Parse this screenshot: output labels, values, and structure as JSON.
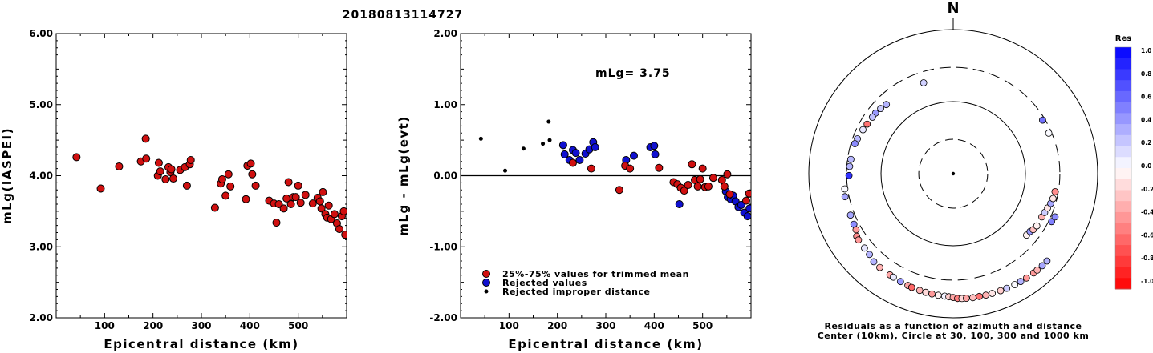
{
  "header": {
    "event_id": "20180813114727"
  },
  "colors": {
    "accepted": "#d01010",
    "rejected": "#1010d0",
    "improper": "#000000"
  },
  "chart_data": [
    {
      "type": "scatter",
      "id": "left",
      "xlabel": "Epicentral distance (km)",
      "ylabel": "mLg(IASPEI)",
      "xlim": [
        0,
        600
      ],
      "ylim": [
        2.0,
        6.0
      ],
      "xticks": [
        100,
        200,
        300,
        400,
        500
      ],
      "yticks": [
        2.0,
        3.0,
        4.0,
        5.0,
        6.0
      ],
      "ytick_labels": [
        "2.00",
        "3.00",
        "4.00",
        "5.00",
        "6.00"
      ],
      "points": [
        [
          42,
          4.26
        ],
        [
          92,
          3.82
        ],
        [
          130,
          4.13
        ],
        [
          175,
          4.2
        ],
        [
          185,
          4.52
        ],
        [
          186,
          4.24
        ],
        [
          210,
          4.0
        ],
        [
          212,
          4.18
        ],
        [
          215,
          4.06
        ],
        [
          226,
          3.95
        ],
        [
          232,
          4.12
        ],
        [
          236,
          4.05
        ],
        [
          238,
          4.09
        ],
        [
          242,
          3.96
        ],
        [
          256,
          4.08
        ],
        [
          266,
          4.12
        ],
        [
          270,
          3.86
        ],
        [
          276,
          4.16
        ],
        [
          278,
          4.22
        ],
        [
          328,
          3.55
        ],
        [
          340,
          3.89
        ],
        [
          343,
          3.95
        ],
        [
          350,
          3.72
        ],
        [
          356,
          4.02
        ],
        [
          360,
          3.85
        ],
        [
          392,
          3.67
        ],
        [
          395,
          4.14
        ],
        [
          402,
          4.17
        ],
        [
          405,
          4.02
        ],
        [
          412,
          3.86
        ],
        [
          440,
          3.65
        ],
        [
          450,
          3.61
        ],
        [
          455,
          3.34
        ],
        [
          460,
          3.6
        ],
        [
          470,
          3.54
        ],
        [
          476,
          3.68
        ],
        [
          480,
          3.91
        ],
        [
          485,
          3.6
        ],
        [
          490,
          3.7
        ],
        [
          495,
          3.7
        ],
        [
          500,
          3.86
        ],
        [
          505,
          3.62
        ],
        [
          515,
          3.73
        ],
        [
          530,
          3.61
        ],
        [
          540,
          3.69
        ],
        [
          545,
          3.64
        ],
        [
          548,
          3.54
        ],
        [
          551,
          3.77
        ],
        [
          556,
          3.46
        ],
        [
          560,
          3.41
        ],
        [
          563,
          3.58
        ],
        [
          568,
          3.39
        ],
        [
          575,
          3.46
        ],
        [
          580,
          3.33
        ],
        [
          585,
          3.25
        ],
        [
          590,
          3.43
        ],
        [
          594,
          3.5
        ],
        [
          597,
          3.17
        ]
      ]
    },
    {
      "type": "scatter",
      "id": "middle",
      "xlabel": "Epicentral distance (km)",
      "ylabel": "mLg - mLg(evt)",
      "annotation": "mLg= 3.75",
      "xlim": [
        0,
        600
      ],
      "ylim": [
        -2.0,
        2.0
      ],
      "xticks": [
        100,
        200,
        300,
        400,
        500
      ],
      "yticks": [
        -2.0,
        -1.0,
        0.0,
        1.0,
        2.0
      ],
      "ytick_labels": [
        "-2.00",
        "-1.00",
        "0.00",
        "1.00",
        "2.00"
      ],
      "legend": [
        {
          "kind": "accepted",
          "label": "25%-75% values for trimmed mean"
        },
        {
          "kind": "rejected",
          "label": "Rejected values"
        },
        {
          "kind": "improper",
          "label": "Rejected improper distance"
        }
      ],
      "improper": [
        [
          42,
          0.52
        ],
        [
          92,
          0.07
        ],
        [
          130,
          0.38
        ],
        [
          170,
          0.45
        ],
        [
          182,
          0.76
        ],
        [
          184,
          0.5
        ]
      ],
      "rejected": [
        [
          212,
          0.43
        ],
        [
          215,
          0.3
        ],
        [
          225,
          0.22
        ],
        [
          232,
          0.36
        ],
        [
          238,
          0.32
        ],
        [
          246,
          0.22
        ],
        [
          258,
          0.31
        ],
        [
          266,
          0.37
        ],
        [
          274,
          0.47
        ],
        [
          278,
          0.4
        ],
        [
          342,
          0.22
        ],
        [
          358,
          0.28
        ],
        [
          392,
          0.4
        ],
        [
          400,
          0.42
        ],
        [
          402,
          0.3
        ],
        [
          452,
          -0.4
        ],
        [
          548,
          -0.22
        ],
        [
          552,
          -0.3
        ],
        [
          558,
          -0.33
        ],
        [
          563,
          -0.28
        ],
        [
          568,
          -0.36
        ],
        [
          574,
          -0.44
        ],
        [
          580,
          -0.41
        ],
        [
          586,
          -0.52
        ],
        [
          593,
          -0.57
        ],
        [
          597,
          -0.46
        ]
      ],
      "accepted": [
        [
          232,
          0.18
        ],
        [
          270,
          0.1
        ],
        [
          328,
          -0.2
        ],
        [
          340,
          0.14
        ],
        [
          350,
          0.1
        ],
        [
          410,
          0.11
        ],
        [
          440,
          -0.09
        ],
        [
          448,
          -0.12
        ],
        [
          455,
          -0.17
        ],
        [
          462,
          -0.21
        ],
        [
          470,
          -0.13
        ],
        [
          478,
          0.16
        ],
        [
          484,
          -0.06
        ],
        [
          490,
          -0.15
        ],
        [
          495,
          -0.05
        ],
        [
          500,
          0.1
        ],
        [
          505,
          -0.16
        ],
        [
          512,
          -0.15
        ],
        [
          522,
          -0.03
        ],
        [
          540,
          -0.06
        ],
        [
          545,
          -0.15
        ],
        [
          551,
          0.02
        ],
        [
          556,
          -0.26
        ],
        [
          590,
          -0.35
        ],
        [
          596,
          -0.25
        ]
      ]
    },
    {
      "type": "polar-scatter",
      "id": "azimuth",
      "north_label": "N",
      "colorbar_title": "Res",
      "colorbar_ticks": [
        "1.0",
        "0.8",
        "0.6",
        "0.4",
        "0.2",
        "0.0",
        "-0.2",
        "-0.4",
        "-0.6",
        "-0.8",
        "-1.0"
      ],
      "caption": [
        "Residuals as a function of azimuth and distance",
        "Center (10km), Circle at 30, 100, 300 and 1000 km"
      ],
      "rings_km": [
        30,
        100,
        300,
        1000
      ],
      "points": [
        [
          342,
          0.18
        ],
        [
          316,
          0.3
        ],
        [
          312,
          0.2
        ],
        [
          308,
          0.4
        ],
        [
          305,
          0.25
        ],
        [
          300,
          -0.55
        ],
        [
          296,
          0.1
        ],
        [
          290,
          0.28
        ],
        [
          287,
          0.45
        ],
        [
          278,
          0.28
        ],
        [
          274,
          0.3
        ],
        [
          269,
          0.8
        ],
        [
          262,
          0.02
        ],
        [
          258,
          0.35
        ],
        [
          248,
          0.35
        ],
        [
          243,
          0.45
        ],
        [
          240,
          -0.4
        ],
        [
          237,
          -0.45
        ],
        [
          235,
          -0.4
        ],
        [
          230,
          0.1
        ],
        [
          226,
          0.3
        ],
        [
          222,
          0.3
        ],
        [
          218,
          -0.3
        ],
        [
          212,
          -0.35
        ],
        [
          210,
          0.08
        ],
        [
          206,
          0.4
        ],
        [
          202,
          -0.35
        ],
        [
          200,
          -0.6
        ],
        [
          196,
          -0.3
        ],
        [
          193,
          -0.15
        ],
        [
          190,
          -0.4
        ],
        [
          187,
          -0.05
        ],
        [
          184,
          0.05
        ],
        [
          182,
          -0.2
        ],
        [
          180,
          -0.35
        ],
        [
          178,
          -0.5
        ],
        [
          176,
          -0.15
        ],
        [
          174,
          -0.35
        ],
        [
          171,
          -0.25
        ],
        [
          168,
          -0.55
        ],
        [
          165,
          -0.3
        ],
        [
          162,
          -0.1
        ],
        [
          158,
          -0.2
        ],
        [
          155,
          0.2
        ],
        [
          151,
          0.02
        ],
        [
          148,
          0.3
        ],
        [
          145,
          -0.4
        ],
        [
          141,
          -0.4
        ],
        [
          139,
          -0.3
        ],
        [
          136,
          0.35
        ],
        [
          133,
          0.3
        ],
        [
          130,
          -0.05
        ],
        [
          127,
          0.4
        ],
        [
          125,
          -0.25
        ],
        [
          122,
          -0.05
        ],
        [
          116,
          -0.3
        ],
        [
          113,
          0.2
        ],
        [
          110,
          -0.1
        ],
        [
          107,
          0.35
        ],
        [
          104,
          -0.1
        ],
        [
          100,
          -0.45
        ],
        [
          67,
          0.02
        ],
        [
          59,
          0.55
        ],
        [
          116,
          0.5
        ],
        [
          113,
          0.45
        ]
      ]
    }
  ]
}
